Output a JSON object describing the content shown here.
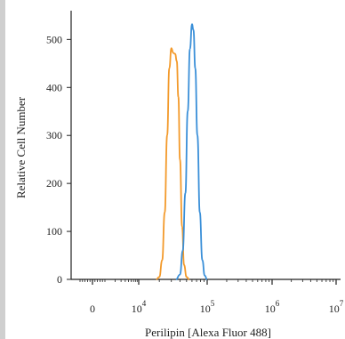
{
  "chart_data": {
    "type": "line",
    "xlabel": "Perilipin [Alexa Fluor 488]",
    "ylabel": "Relative Cell Number",
    "x_scale": "biexponential (linear near 0, log above 10^3)",
    "y_ticks": [
      0,
      100,
      200,
      300,
      400,
      500
    ],
    "ylim": [
      0,
      560
    ],
    "x_ticks": [
      {
        "value": 0,
        "base": "0",
        "exp": ""
      },
      {
        "value": 10000,
        "base": "10",
        "exp": "4"
      },
      {
        "value": 100000,
        "base": "10",
        "exp": "5"
      },
      {
        "value": 1000000,
        "base": "10",
        "exp": "6"
      },
      {
        "value": 10000000,
        "base": "10",
        "exp": "7"
      }
    ],
    "series": [
      {
        "color": "#f39a2b",
        "points": [
          [
            18000,
            0
          ],
          [
            20000,
            5
          ],
          [
            22000,
            40
          ],
          [
            24000,
            140
          ],
          [
            26000,
            300
          ],
          [
            28000,
            440
          ],
          [
            30000,
            482
          ],
          [
            32000,
            472
          ],
          [
            34000,
            470
          ],
          [
            36000,
            455
          ],
          [
            38000,
            380
          ],
          [
            40000,
            250
          ],
          [
            43000,
            110
          ],
          [
            46000,
            30
          ],
          [
            50000,
            5
          ],
          [
            55000,
            0
          ]
        ]
      },
      {
        "color": "#3a8fd8",
        "points": [
          [
            35000,
            0
          ],
          [
            40000,
            10
          ],
          [
            44000,
            60
          ],
          [
            48000,
            180
          ],
          [
            52000,
            350
          ],
          [
            56000,
            480
          ],
          [
            60000,
            532
          ],
          [
            63000,
            520
          ],
          [
            67000,
            440
          ],
          [
            72000,
            300
          ],
          [
            78000,
            140
          ],
          [
            85000,
            40
          ],
          [
            92000,
            8
          ],
          [
            100000,
            0
          ]
        ]
      }
    ],
    "grid": false,
    "legend": "none"
  }
}
